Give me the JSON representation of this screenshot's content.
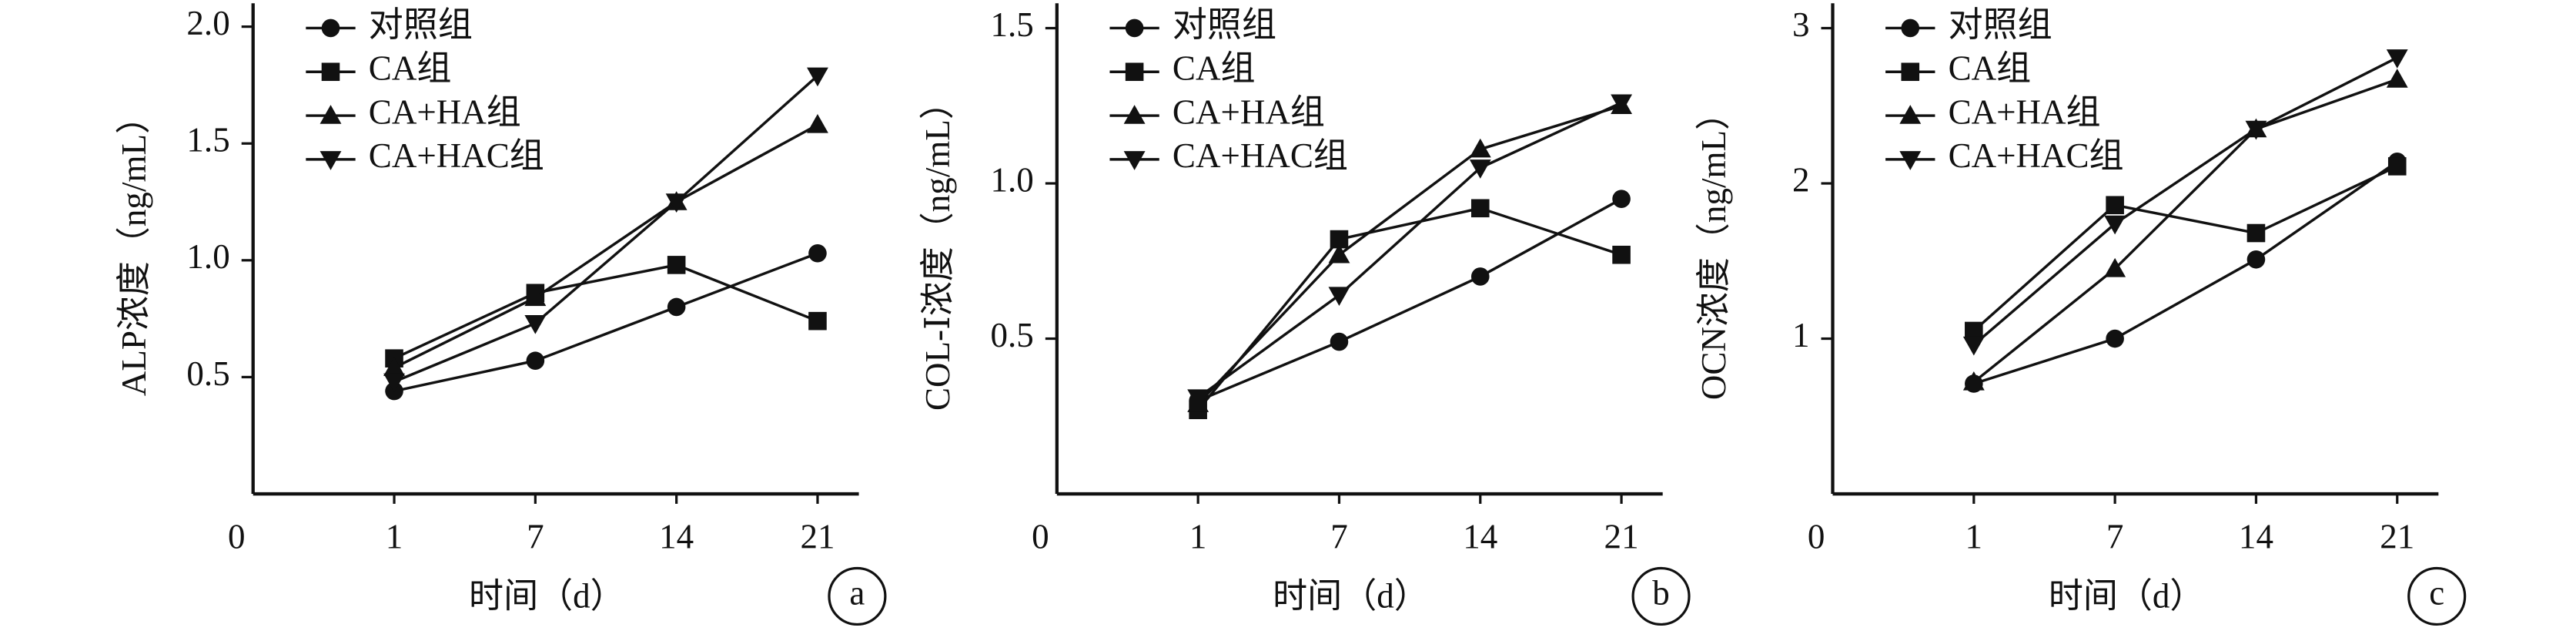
{
  "chart_data": [
    {
      "type": "line",
      "panel_label": "a",
      "x_label": "时间（d）",
      "y_label": "ALP浓度（ng/mL）",
      "x_origin_label": "0",
      "categories": [
        "1",
        "7",
        "14",
        "21"
      ],
      "ylim": [
        0,
        2.1
      ],
      "yticks": [
        0.5,
        {
          "value": 1.0,
          "label": "1.0"
        },
        1.5,
        {
          "value": 2.0,
          "label": "2.0"
        }
      ],
      "legend": "upper left",
      "series": [
        {
          "name": "对照组",
          "color": "#111111",
          "marker": "circle",
          "values": [
            0.44,
            0.57,
            0.8,
            1.03
          ]
        },
        {
          "name": "CA组",
          "color": "#111111",
          "marker": "square",
          "values": [
            0.58,
            0.86,
            0.98,
            0.74
          ]
        },
        {
          "name": "CA+HA组",
          "color": "#111111",
          "marker": "triangle-up",
          "values": [
            0.54,
            0.84,
            1.25,
            1.58
          ]
        },
        {
          "name": "CA+HAC组",
          "color": "#111111",
          "marker": "triangle-down",
          "values": [
            0.48,
            0.73,
            1.25,
            1.79
          ]
        }
      ]
    },
    {
      "type": "line",
      "panel_label": "b",
      "x_label": "时间（d）",
      "y_label": "COL-Ⅰ浓度（ng/mL）",
      "x_origin_label": "0",
      "categories": [
        "1",
        "7",
        "14",
        "21"
      ],
      "ylim": [
        0,
        1.58
      ],
      "yticks": [
        0.5,
        {
          "value": 1.0,
          "label": "1.0"
        },
        1.5
      ],
      "legend": "upper left",
      "series": [
        {
          "name": "对照组",
          "color": "#111111",
          "marker": "circle",
          "values": [
            0.3,
            0.49,
            0.7,
            0.95
          ]
        },
        {
          "name": "CA组",
          "color": "#111111",
          "marker": "square",
          "values": [
            0.27,
            0.82,
            0.92,
            0.77
          ]
        },
        {
          "name": "CA+HA组",
          "color": "#111111",
          "marker": "triangle-up",
          "values": [
            0.29,
            0.77,
            1.11,
            1.25
          ]
        },
        {
          "name": "CA+HAC组",
          "color": "#111111",
          "marker": "triangle-down",
          "values": [
            0.31,
            0.64,
            1.05,
            1.26
          ]
        }
      ]
    },
    {
      "type": "line",
      "panel_label": "c",
      "x_label": "时间（d）",
      "y_label": "OCN浓度（ng/mL）",
      "x_origin_label": "0",
      "categories": [
        "1",
        "7",
        "14",
        "21"
      ],
      "ylim": [
        0,
        3.16
      ],
      "yticks": [
        1,
        2,
        3
      ],
      "legend": "upper left",
      "series": [
        {
          "name": "对照组",
          "color": "#111111",
          "marker": "circle",
          "values": [
            0.71,
            1.0,
            1.51,
            2.14
          ]
        },
        {
          "name": "CA组",
          "color": "#111111",
          "marker": "square",
          "values": [
            1.05,
            1.86,
            1.68,
            2.11
          ]
        },
        {
          "name": "CA+HA组",
          "color": "#111111",
          "marker": "triangle-up",
          "values": [
            0.72,
            1.45,
            2.35,
            2.67
          ]
        },
        {
          "name": "CA+HAC组",
          "color": "#111111",
          "marker": "triangle-down",
          "values": [
            0.96,
            1.74,
            2.35,
            2.81
          ]
        }
      ]
    }
  ]
}
